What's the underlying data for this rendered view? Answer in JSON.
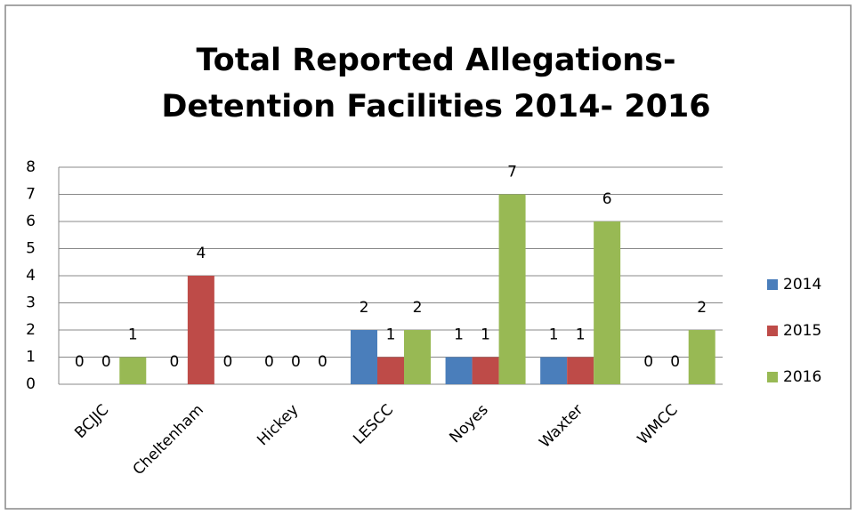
{
  "chart_data": {
    "type": "bar",
    "title": "Total Reported Allegations-Detention Facilities 2014- 2016",
    "categories": [
      "BCJJC",
      "Cheltenham",
      "Hickey",
      "LESCC",
      "Noyes",
      "Waxter",
      "WMCC"
    ],
    "series": [
      {
        "name": "2014",
        "color": "#4a7ebb",
        "values": [
          0,
          0,
          0,
          2,
          1,
          1,
          0
        ]
      },
      {
        "name": "2015",
        "color": "#be4b48",
        "values": [
          0,
          4,
          0,
          1,
          1,
          1,
          0
        ]
      },
      {
        "name": "2016",
        "color": "#98b954",
        "values": [
          1,
          0,
          0,
          2,
          7,
          6,
          2
        ]
      }
    ],
    "ylim": [
      0,
      8
    ],
    "yticks": [
      0,
      1,
      2,
      3,
      4,
      5,
      6,
      7,
      8
    ],
    "grid": true,
    "legend": "right"
  }
}
